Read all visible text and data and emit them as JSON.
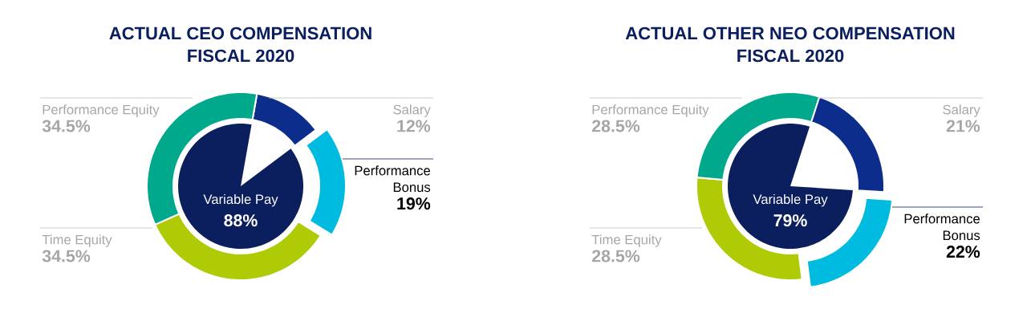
{
  "chart_data": [
    {
      "type": "donut",
      "title": "ACTUAL CEO COMPENSATION",
      "subtitle": "FISCAL 2020",
      "categories": [
        "Salary",
        "Performance Bonus",
        "Time Equity",
        "Performance Equity"
      ],
      "values": [
        12,
        19,
        34.5,
        34.5
      ],
      "colors": [
        "#0d2d8c",
        "#00bbe0",
        "#aecb06",
        "#00a88c"
      ],
      "value_labels": [
        "12%",
        "19%",
        "34.5%",
        "34.5%"
      ],
      "color": "#0b1f5e",
      "annotations": [
        "Variable Pay",
        "88%"
      ]
    },
    {
      "type": "donut",
      "title": "ACTUAL OTHER NEO COMPENSATION",
      "subtitle": "FISCAL 2020",
      "categories": [
        "Salary",
        "Performance Bonus",
        "Time Equity",
        "Performance Equity"
      ],
      "values": [
        21,
        22,
        28.5,
        28.5
      ],
      "colors": [
        "#0d2d8c",
        "#00bbe0",
        "#aecb06",
        "#00a88c"
      ],
      "value_labels": [
        "21%",
        "22%",
        "28.5%",
        "28.5%"
      ],
      "color": "#0b1f5e",
      "annotations": [
        "Variable Pay",
        "79%"
      ]
    }
  ]
}
